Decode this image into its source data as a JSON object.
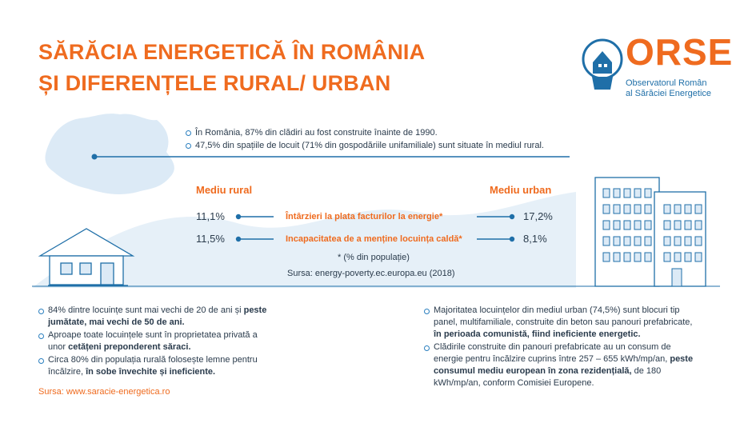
{
  "title": {
    "line1": "SĂRĂCIA ENERGETICĂ ÎN ROMÂNIA",
    "line2": "ȘI DIFERENȚELE RURAL/ URBAN"
  },
  "logo": {
    "word": "ORSE",
    "sub1": "Observatorul Român",
    "sub2": "al Sărăciei Energetice",
    "icon": "lightbulb-house-icon"
  },
  "facts": [
    "În România, 87% din clădiri au fost construite înainte de 1990.",
    "47,5% din spațiile de locuit (71% din gospodăriile unifamiliale) sunt situate în mediul rural."
  ],
  "comparison": {
    "rural_header": "Mediu rural",
    "urban_header": "Mediu urban",
    "rows": [
      {
        "rural": "11,1%",
        "label": "Întârzieri la plata facturilor la energie*",
        "urban": "17,2%"
      },
      {
        "rural": "11,5%",
        "label": "Incapacitatea de a menține locuința caldă*",
        "urban": "8,1%"
      }
    ],
    "footnote": "* (% din populație)",
    "source": "Sursa: energy-poverty.ec.europa.eu (2018)"
  },
  "rural_list": [
    {
      "a": "84% dintre locuințe sunt mai vechi de 20 de ani și ",
      "b": "peste jumătate, mai vechi de 50 de ani.",
      "c": ""
    },
    {
      "a": "Aproape toate locuințele sunt în proprietatea privată a unor ",
      "b": "cetățeni preponderent săraci.",
      "c": ""
    },
    {
      "a": "Circa 80% din populația rurală folosește lemne pentru încălzire, ",
      "b": "în sobe învechite și ineficiente.",
      "c": ""
    }
  ],
  "rural_source": "Sursa: www.saracie-energetica.ro",
  "urban_list": [
    {
      "a": "Majoritatea locuințelor din mediul urban (74,5%) sunt blocuri tip panel, multifamiliale, construite din beton sau panouri prefabricate, ",
      "b": "în perioada comunistă, fiind ineficiente energetic.",
      "c": ""
    },
    {
      "a": "Clădirile construite din panouri prefabricate au un consum de energie pentru încălzire cuprins între 257 – 655 kWh/mp/an, ",
      "b": "peste consumul mediu european în zona rezidențială,",
      "c": " de 180 kWh/mp/an, conform Comisiei Europene."
    }
  ],
  "colors": {
    "orange": "#ef6b1f",
    "blue": "#1f6fa8",
    "light_blue": "#e4eef7"
  }
}
